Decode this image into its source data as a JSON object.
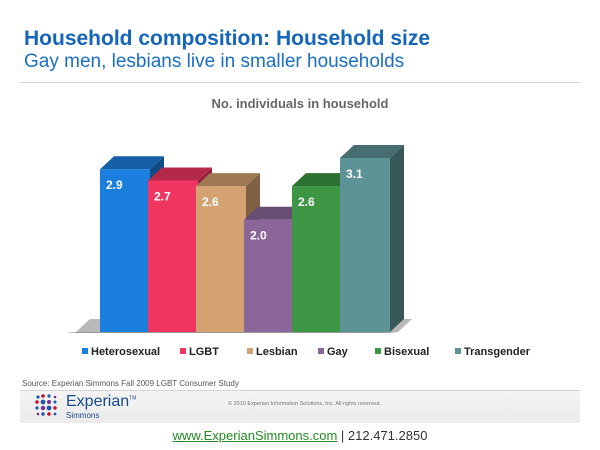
{
  "header": {
    "title": "Household composition: Household size",
    "subtitle": "Gay men, lesbians live in smaller households"
  },
  "chart_data": {
    "type": "bar",
    "title": "No. individuals in household",
    "categories": [
      "Heterosexual",
      "LGBT",
      "Lesbian",
      "Gay",
      "Bisexual",
      "Transgender"
    ],
    "values": [
      2.9,
      2.7,
      2.6,
      2.0,
      2.6,
      3.1
    ],
    "value_labels": [
      "2.9",
      "2.7",
      "2.6",
      "2.0",
      "2.6",
      "3.1"
    ],
    "colors": [
      "#1a7fdc",
      "#f03561",
      "#d4a271",
      "#8a6699",
      "#3c9643",
      "#5d9296"
    ],
    "ylim": [
      0,
      3.1
    ],
    "xlabel": "",
    "ylabel": "",
    "legend_position": "bottom",
    "grid": false
  },
  "footer": {
    "source": "Source: Experian Simmons Fall 2009 LGBT Consumer Study",
    "brand": "Experian",
    "trademark": "TM",
    "brand_sub": "Simmons",
    "copyright": "© 2010 Experian Information Solutions, Inc.  All rights reserved.",
    "website": "www.ExperianSimmons.com",
    "phone_line": " | 212.471.2850"
  }
}
